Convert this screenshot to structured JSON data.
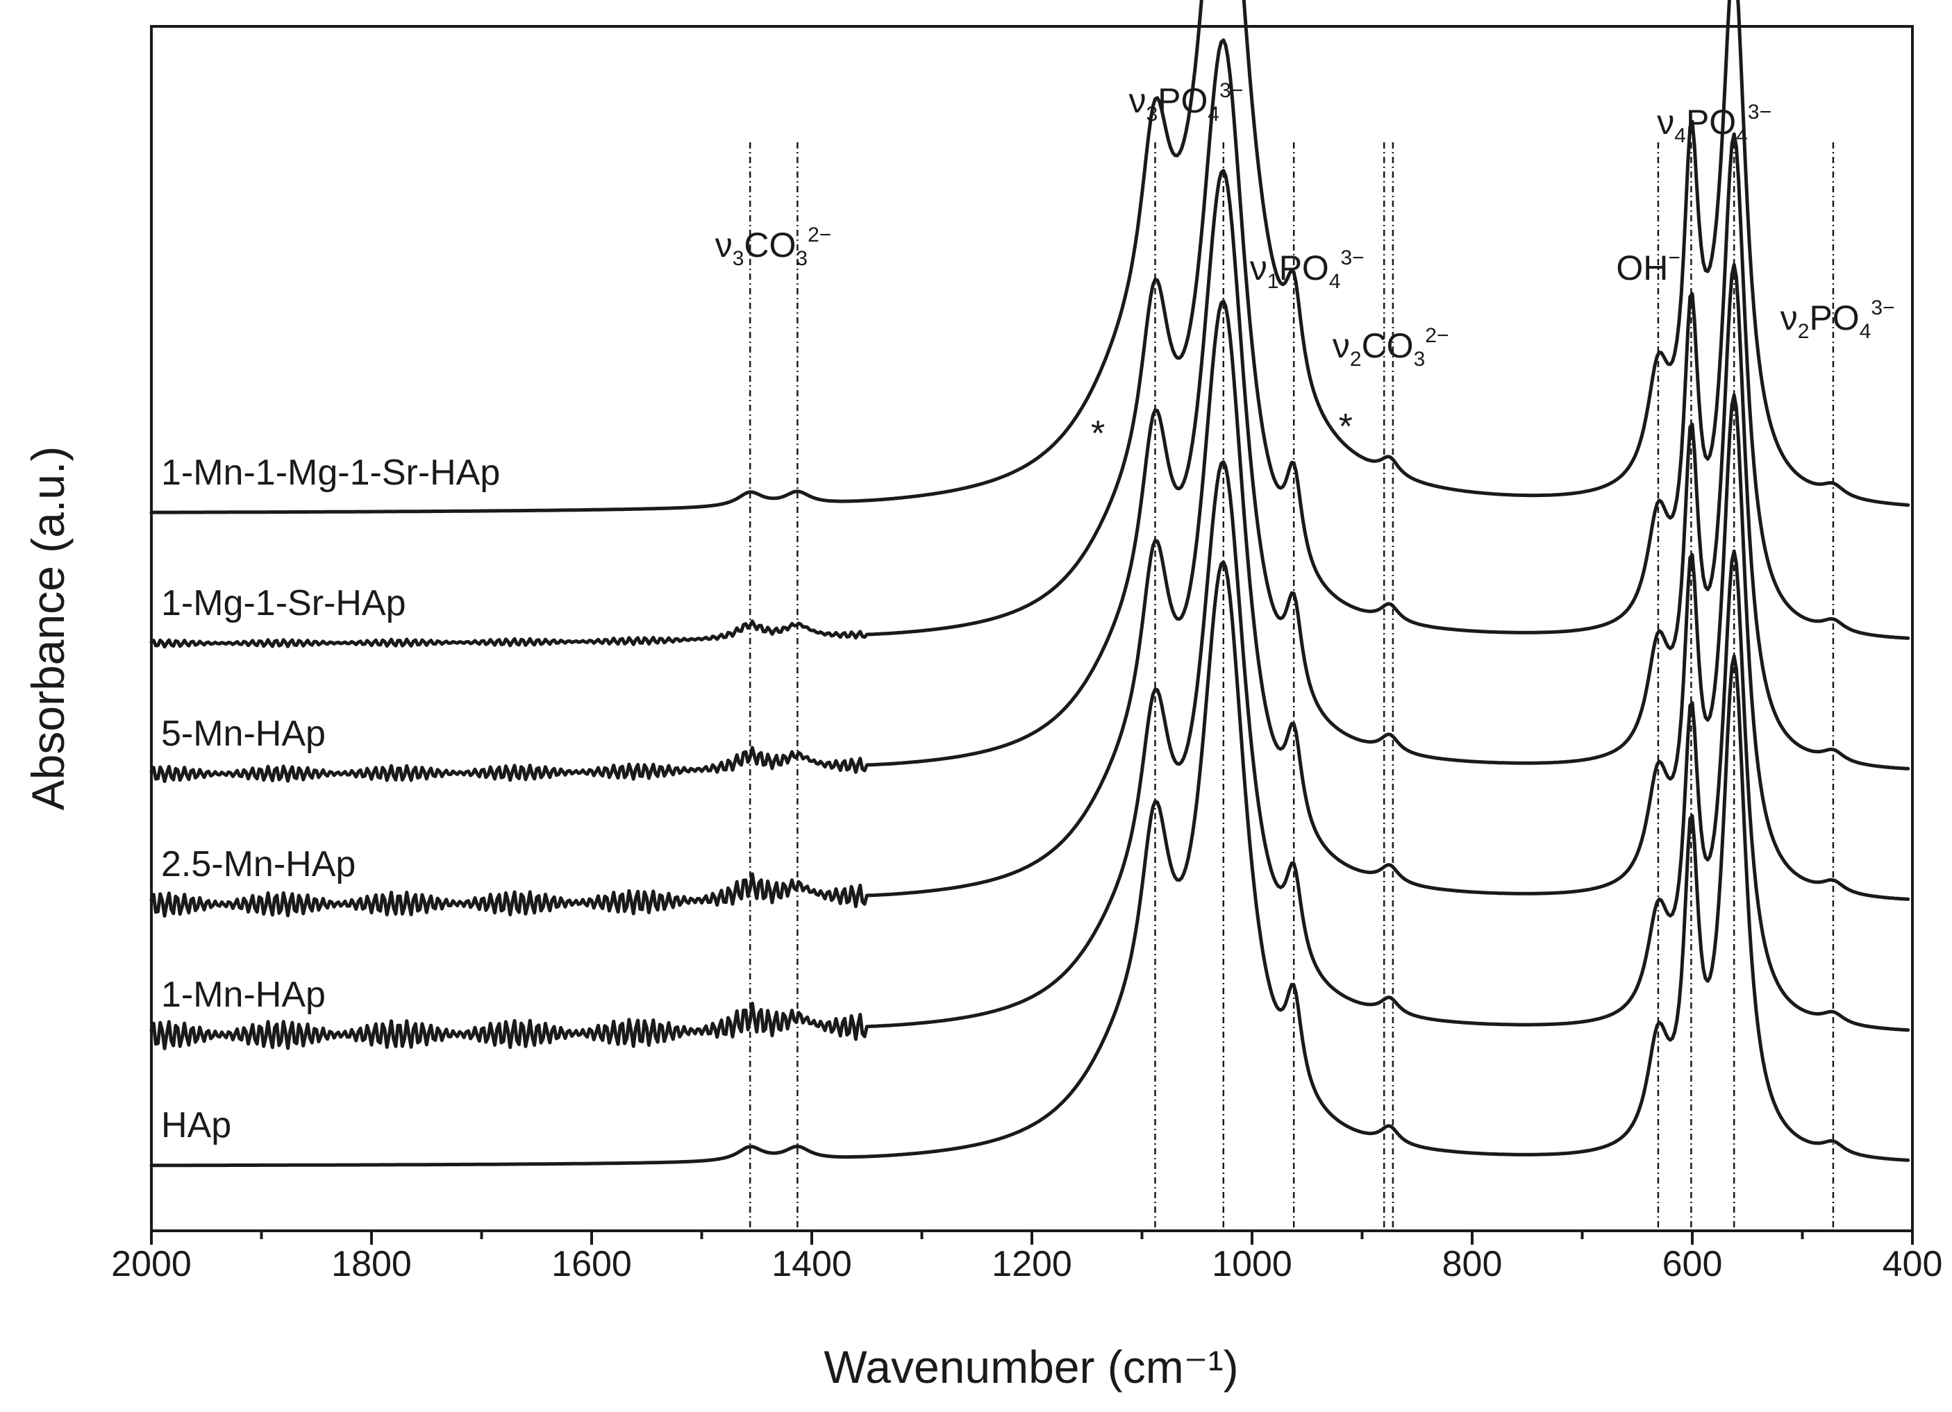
{
  "chart_data": {
    "type": "line",
    "title": "",
    "xlabel": "Wavenumber (cm⁻¹)",
    "ylabel": "Absorbance (a.u.)",
    "xlim": [
      2000,
      400
    ],
    "x_reversed": true,
    "x_ticks": [
      2000,
      1800,
      1600,
      1400,
      1200,
      1000,
      800,
      600,
      400
    ],
    "y_units": "arbitrary, stacked with offsets",
    "series": [
      {
        "name": "HAp",
        "offset": 0.0,
        "noise": 0.0,
        "gain": 1.0
      },
      {
        "name": "1-Mn-HAp",
        "offset": 1.0,
        "noise": 1.0,
        "gain": 0.95
      },
      {
        "name": "2.5-Mn-HAp",
        "offset": 2.0,
        "noise": 0.85,
        "gain": 1.0
      },
      {
        "name": "5-Mn-HAp",
        "offset": 3.0,
        "noise": 0.55,
        "gain": 1.0
      },
      {
        "name": "1-Mg-1-Sr-HAp",
        "offset": 4.0,
        "noise": 0.25,
        "gain": 1.0
      },
      {
        "name": "1-Mn-1-Mg-1-Sr-HAp",
        "offset": 5.0,
        "noise": 0.0,
        "gain": 1.0,
        "broad": true
      }
    ],
    "band_positions": [
      1456,
      1413,
      1088,
      1026,
      962,
      880,
      872,
      631,
      601,
      562,
      472
    ],
    "band_labels": [
      {
        "text": "ν3CO3 2−",
        "main": "ν",
        "sub1": "3",
        "mid": "CO",
        "sub2": "3",
        "sup": "2−",
        "wavenumber": 1435
      },
      {
        "text": "ν3PO4 3−",
        "main": "ν",
        "sub1": "3",
        "mid": "PO",
        "sub2": "4",
        "sup": "3−",
        "wavenumber": 1060
      },
      {
        "text": "ν1PO4 3−",
        "main": "ν",
        "sub1": "1",
        "mid": "PO",
        "sub2": "4",
        "sup": "3−",
        "wavenumber": 950
      },
      {
        "text": "ν2CO3 2−",
        "main": "ν",
        "sub1": "2",
        "mid": "CO",
        "sub2": "3",
        "sup": "2−",
        "wavenumber": 874
      },
      {
        "text": "OH−",
        "main": "OH",
        "sup": "−",
        "wavenumber": 640
      },
      {
        "text": "ν4PO4 3−",
        "main": "ν",
        "sub1": "4",
        "mid": "PO",
        "sub2": "4",
        "sup": "3−",
        "wavenumber": 580
      },
      {
        "text": "ν2PO4 3−",
        "main": "ν",
        "sub1": "2",
        "mid": "PO",
        "sub2": "4",
        "sup": "3−",
        "wavenumber": 468
      }
    ],
    "asterisks": [
      {
        "text": "*",
        "wavenumber": 1140
      },
      {
        "text": "*",
        "wavenumber": 915
      }
    ]
  }
}
